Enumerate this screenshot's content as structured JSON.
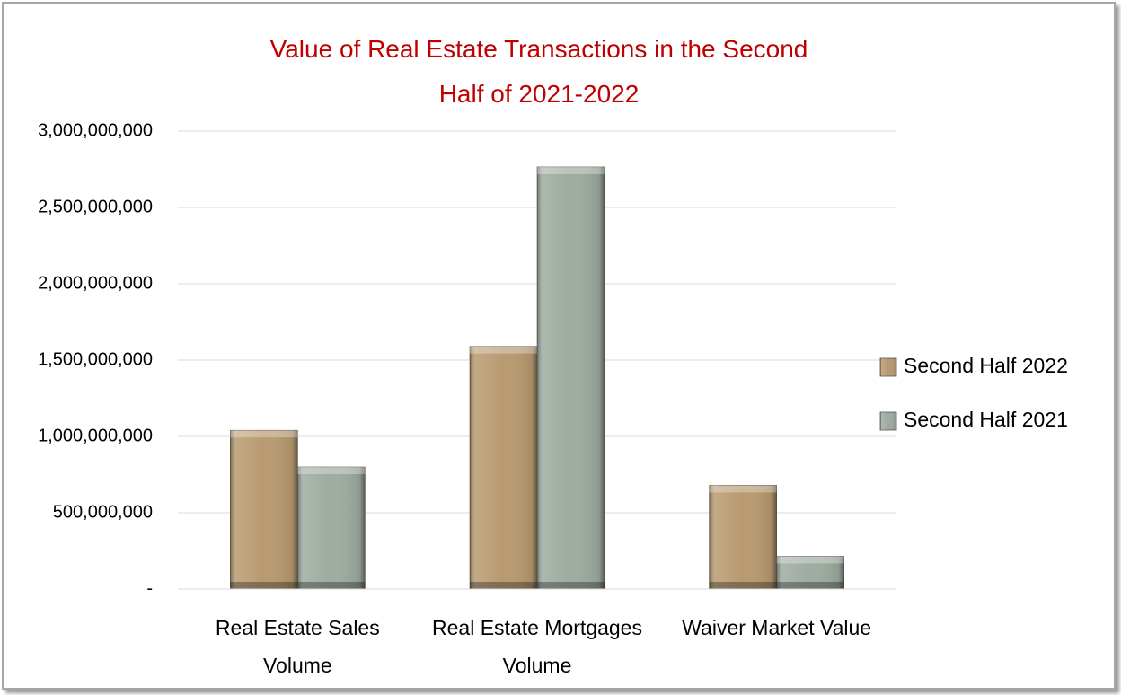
{
  "chart_data": {
    "type": "bar",
    "title": "Value of Real Estate Transactions in the Second Half of 2021-2022",
    "categories": [
      "Real Estate Sales Volume",
      "Real Estate Mortgages Volume",
      "Waiver Market Value"
    ],
    "series": [
      {
        "name": "Second Half 2022",
        "color": "#b89a70",
        "values": [
          1040000000,
          1590000000,
          680000000
        ]
      },
      {
        "name": "Second Half 2021",
        "color": "#9eaba0",
        "values": [
          800000000,
          2765000000,
          215000000
        ]
      }
    ],
    "ylim": [
      0,
      3000000000
    ],
    "yticks": [
      {
        "value": 0,
        "label": "-"
      },
      {
        "value": 500000000,
        "label": "500,000,000"
      },
      {
        "value": 1000000000,
        "label": "1,000,000,000"
      },
      {
        "value": 1500000000,
        "label": "1,500,000,000"
      },
      {
        "value": 2000000000,
        "label": "2,000,000,000"
      },
      {
        "value": 2500000000,
        "label": "2,500,000,000"
      },
      {
        "value": 3000000000,
        "label": "3,000,000,000"
      }
    ],
    "grid": true,
    "legend": "right"
  }
}
